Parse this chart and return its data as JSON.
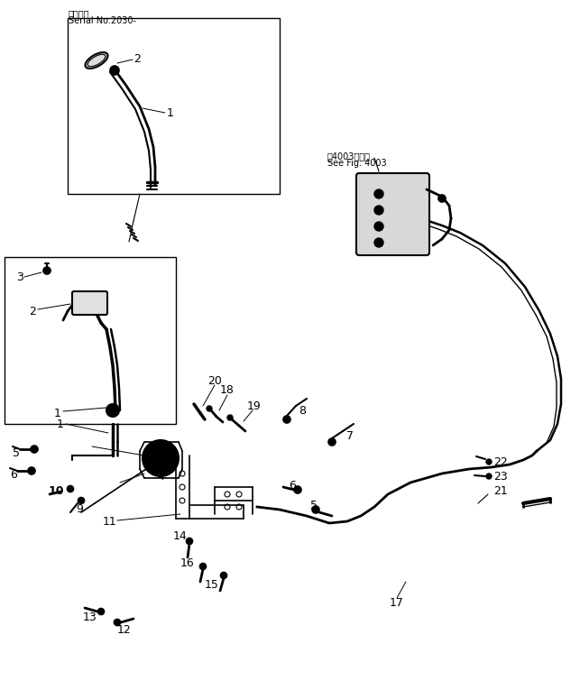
{
  "bg_color": "#ffffff",
  "line_color": "#000000",
  "figsize": [
    6.43,
    7.65
  ],
  "dpi": 100,
  "serial_label_1": "適用号機",
  "serial_label_2": "Serial No.2030-",
  "see_fig_label_1": "笥4003図参用",
  "see_fig_label_2": "See Fig. 4003"
}
